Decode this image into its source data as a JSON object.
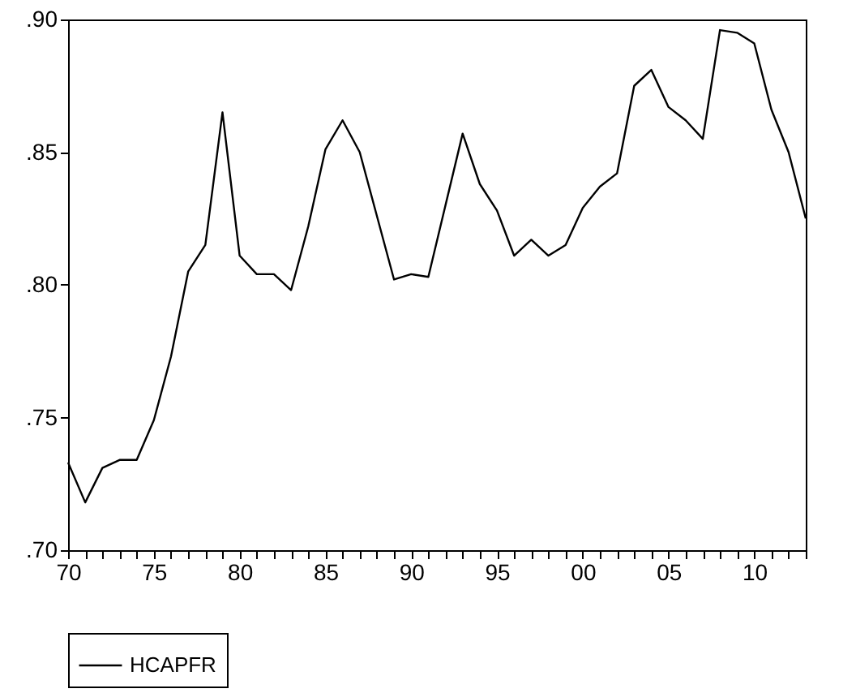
{
  "chart_data": {
    "type": "line",
    "x": [
      1970,
      1971,
      1972,
      1973,
      1974,
      1975,
      1976,
      1977,
      1978,
      1979,
      1980,
      1981,
      1982,
      1983,
      1984,
      1985,
      1986,
      1987,
      1988,
      1989,
      1990,
      1991,
      1992,
      1993,
      1994,
      1995,
      1996,
      1997,
      1998,
      1999,
      2000,
      2001,
      2002,
      2003,
      2004,
      2005,
      2006,
      2007,
      2008,
      2009,
      2010,
      2011,
      2012,
      2013
    ],
    "series": [
      {
        "name": "HCAPFR",
        "color": "#000000",
        "values": [
          0.733,
          0.718,
          0.731,
          0.734,
          0.734,
          0.749,
          0.773,
          0.805,
          0.815,
          0.865,
          0.811,
          0.804,
          0.804,
          0.798,
          0.822,
          0.851,
          0.862,
          0.85,
          0.826,
          0.802,
          0.804,
          0.803,
          0.83,
          0.857,
          0.838,
          0.828,
          0.811,
          0.817,
          0.811,
          0.815,
          0.829,
          0.837,
          0.842,
          0.875,
          0.881,
          0.867,
          0.862,
          0.855,
          0.896,
          0.895,
          0.891,
          0.866,
          0.85,
          0.825
        ]
      }
    ],
    "xlim": [
      1970,
      2013
    ],
    "xticks": [
      {
        "value": 1970,
        "label": "70"
      },
      {
        "value": 1971,
        "label": null
      },
      {
        "value": 1972,
        "label": null
      },
      {
        "value": 1973,
        "label": null
      },
      {
        "value": 1974,
        "label": null
      },
      {
        "value": 1975,
        "label": "75"
      },
      {
        "value": 1976,
        "label": null
      },
      {
        "value": 1977,
        "label": null
      },
      {
        "value": 1978,
        "label": null
      },
      {
        "value": 1979,
        "label": null
      },
      {
        "value": 1980,
        "label": "80"
      },
      {
        "value": 1981,
        "label": null
      },
      {
        "value": 1982,
        "label": null
      },
      {
        "value": 1983,
        "label": null
      },
      {
        "value": 1984,
        "label": null
      },
      {
        "value": 1985,
        "label": "85"
      },
      {
        "value": 1986,
        "label": null
      },
      {
        "value": 1987,
        "label": null
      },
      {
        "value": 1988,
        "label": null
      },
      {
        "value": 1989,
        "label": null
      },
      {
        "value": 1990,
        "label": "90"
      },
      {
        "value": 1991,
        "label": null
      },
      {
        "value": 1992,
        "label": null
      },
      {
        "value": 1993,
        "label": null
      },
      {
        "value": 1994,
        "label": null
      },
      {
        "value": 1995,
        "label": "95"
      },
      {
        "value": 1996,
        "label": null
      },
      {
        "value": 1997,
        "label": null
      },
      {
        "value": 1998,
        "label": null
      },
      {
        "value": 1999,
        "label": null
      },
      {
        "value": 2000,
        "label": "00"
      },
      {
        "value": 2001,
        "label": null
      },
      {
        "value": 2002,
        "label": null
      },
      {
        "value": 2003,
        "label": null
      },
      {
        "value": 2004,
        "label": null
      },
      {
        "value": 2005,
        "label": "05"
      },
      {
        "value": 2006,
        "label": null
      },
      {
        "value": 2007,
        "label": null
      },
      {
        "value": 2008,
        "label": null
      },
      {
        "value": 2009,
        "label": null
      },
      {
        "value": 2010,
        "label": "10"
      },
      {
        "value": 2011,
        "label": null
      },
      {
        "value": 2012,
        "label": null
      },
      {
        "value": 2013,
        "label": null
      }
    ],
    "ylim": [
      0.7,
      0.9
    ],
    "yticks": [
      {
        "value": 0.7,
        "label": ".70"
      },
      {
        "value": 0.75,
        "label": ".75"
      },
      {
        "value": 0.8,
        "label": ".80"
      },
      {
        "value": 0.85,
        "label": ".85"
      },
      {
        "value": 0.9,
        "label": ".90"
      }
    ],
    "grid": false,
    "legend": "bottom",
    "marker": "none",
    "line_style": "solid"
  }
}
